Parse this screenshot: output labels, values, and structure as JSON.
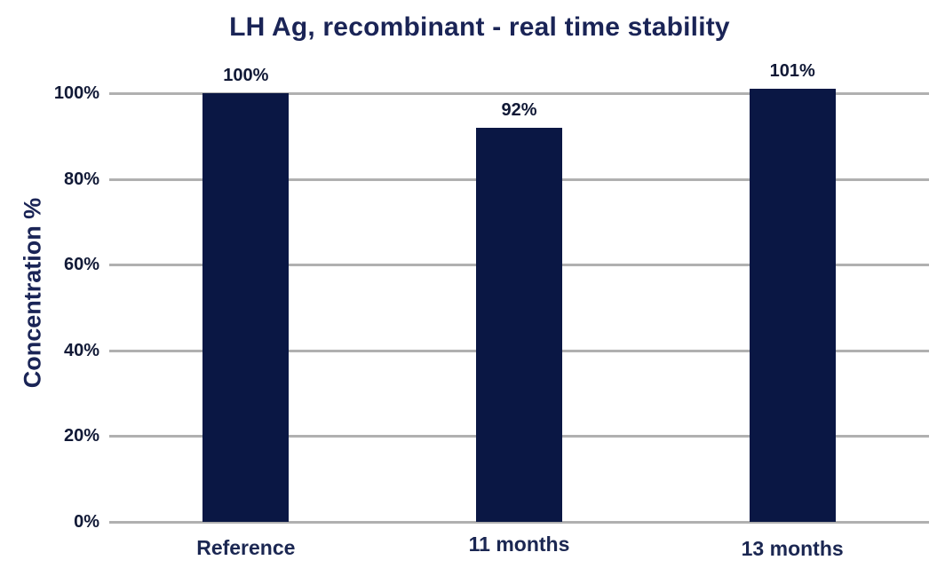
{
  "chart_data": {
    "type": "bar",
    "title": "LH Ag, recombinant - real time stability",
    "categories": [
      "Reference",
      "11 months",
      "13 months"
    ],
    "values": [
      100,
      92,
      101
    ],
    "value_labels": [
      "100%",
      "92%",
      "101%"
    ],
    "xlabel": "",
    "ylabel": "Concentration %",
    "ylim": [
      0,
      110
    ],
    "yticks": [
      0,
      20,
      40,
      60,
      80,
      100
    ],
    "ytick_labels": [
      "0%",
      "20%",
      "40%",
      "60%",
      "80%",
      "100%"
    ],
    "grid": "horizontal",
    "legend": "none",
    "colors": {
      "bar": "#0a1744",
      "title_text": "#1a2456",
      "axis_tick_text": "#111936",
      "value_label_text": "#111936",
      "category_text": "#1b2752",
      "ylabel_text": "#1a2456",
      "gridline": "#b0b0b0",
      "background": "#ffffff"
    }
  }
}
